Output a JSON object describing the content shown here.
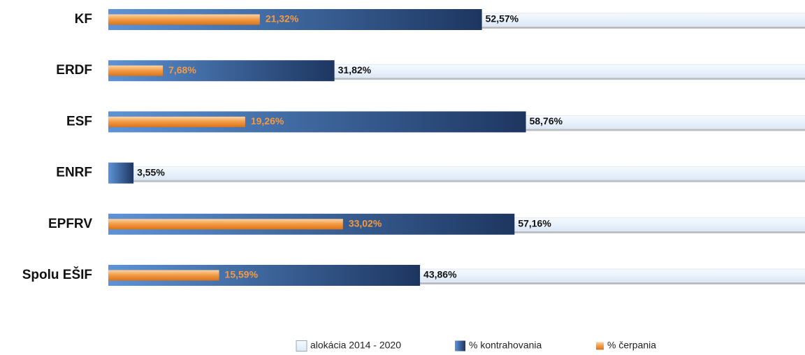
{
  "chart_data": {
    "type": "barh",
    "categories": [
      "KF",
      "ERDF",
      "ESF",
      "ENRF",
      "EPFRV",
      "Spolu EŠIF"
    ],
    "xlim": [
      0,
      100
    ],
    "series": [
      {
        "name": "alokácia 2014 - 2020",
        "color": "#e6f0fb",
        "values": [
          100,
          100,
          100,
          100,
          100,
          100
        ]
      },
      {
        "name": "% kontrahovania",
        "color": "#2f5b96",
        "values": [
          52.57,
          31.82,
          58.76,
          3.55,
          57.16,
          43.86
        ],
        "value_labels": [
          "52,57%",
          "31,82%",
          "58,76%",
          "3,55%",
          "57,16%",
          "43,86%"
        ]
      },
      {
        "name": "% čerpania",
        "color": "#f29a44",
        "values": [
          21.32,
          7.68,
          19.26,
          null,
          33.02,
          15.59
        ],
        "value_labels": [
          "21,32%",
          "7,68%",
          "19,26%",
          null,
          "33,02%",
          "15,59%"
        ]
      }
    ],
    "legend": "bottom"
  }
}
